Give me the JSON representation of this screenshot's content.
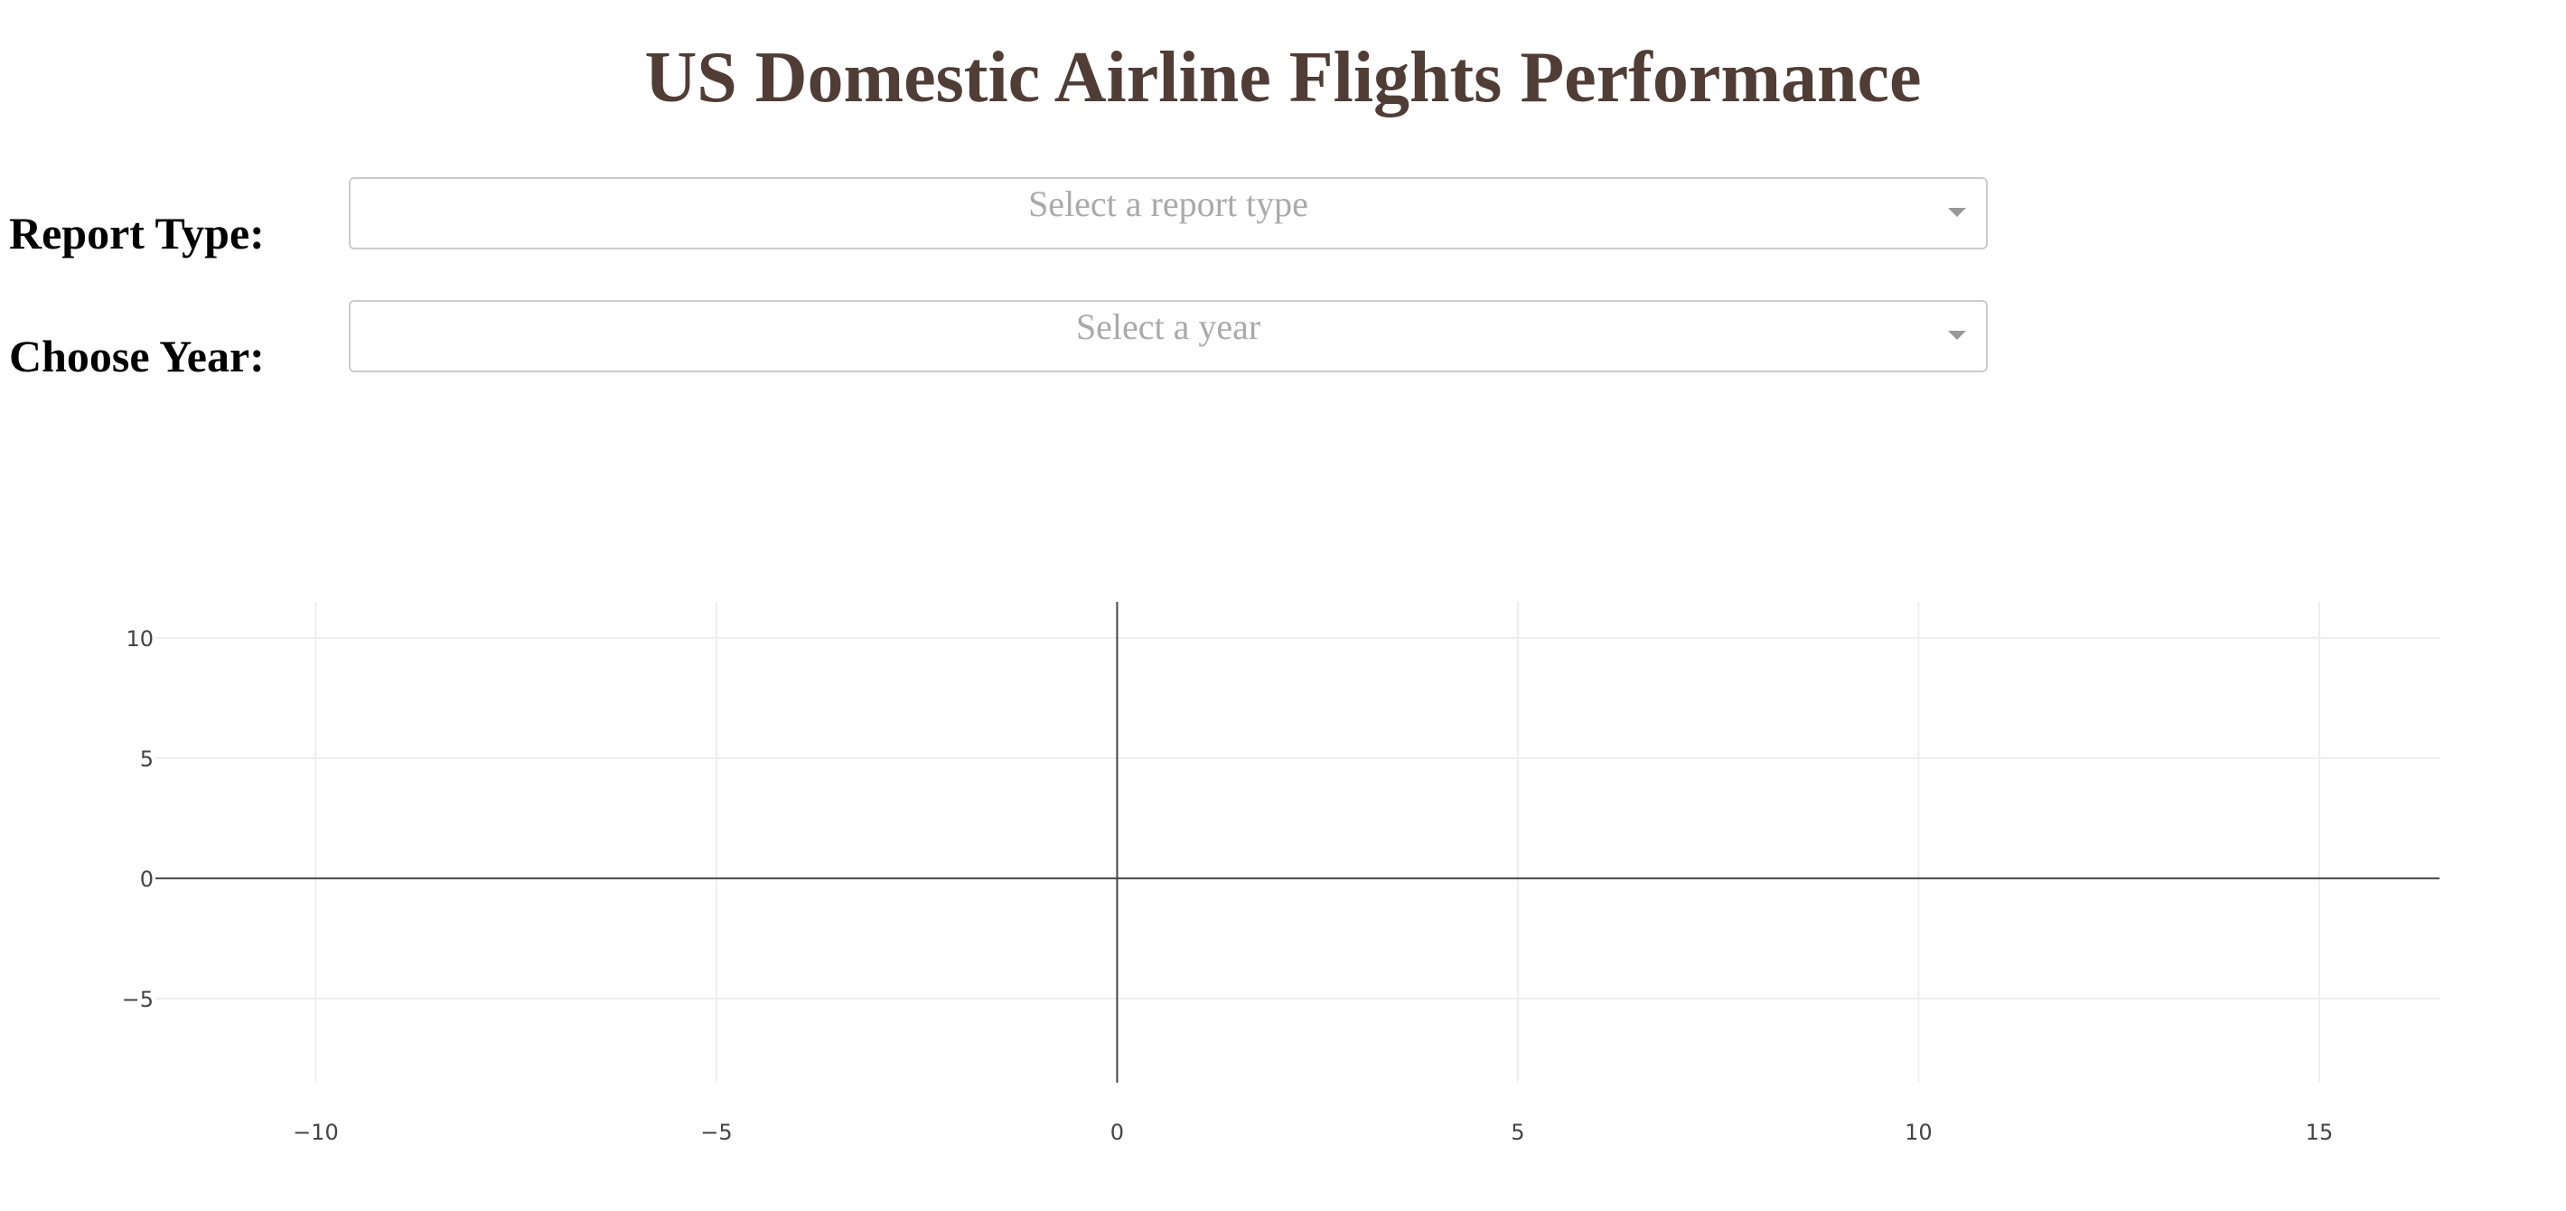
{
  "header": {
    "title": "US Domestic Airline Flights Performance"
  },
  "report_type": {
    "label": "Report Type:",
    "placeholder": "Select a report type"
  },
  "year": {
    "label": "Choose Year:",
    "placeholder": "Select a year"
  },
  "colors": {
    "title": "#503d36",
    "grid": "#eeeeee",
    "zeroline": "#444444",
    "placeholder": "#aaaaaa",
    "border": "#cccccc"
  },
  "chart_data": {
    "type": "scatter",
    "title": "",
    "xlabel": "",
    "ylabel": "",
    "series": [],
    "xlim": [
      -12,
      16.5
    ],
    "ylim": [
      -8.5,
      11.5
    ],
    "x_ticks": [
      -10,
      -5,
      0,
      5,
      10,
      15
    ],
    "y_ticks": [
      -5,
      0,
      5,
      10
    ],
    "x_tick_labels": [
      "−10",
      "−5",
      "0",
      "5",
      "10",
      "15"
    ],
    "y_tick_labels": [
      "−5",
      "0",
      "5",
      "10"
    ],
    "grid": true
  }
}
